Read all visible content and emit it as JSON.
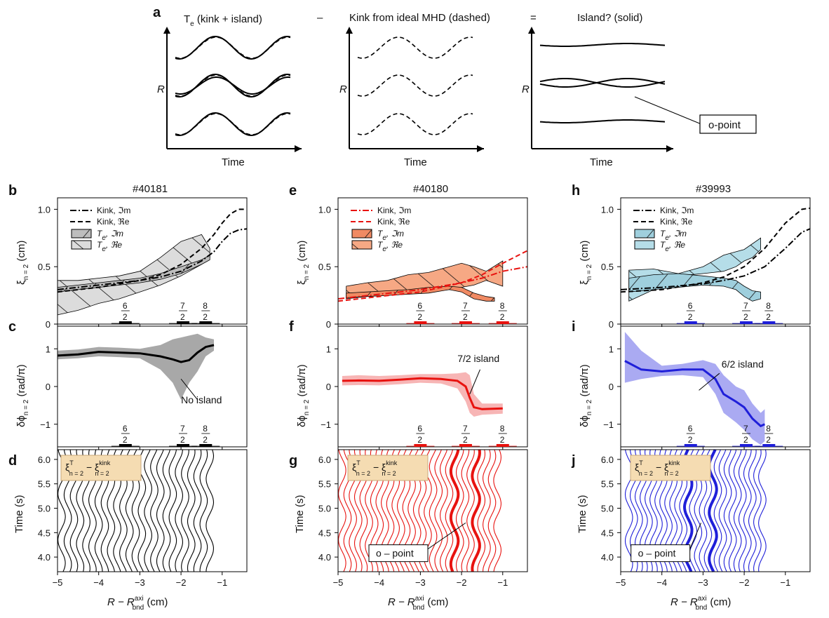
{
  "panel_letters": [
    "a",
    "b",
    "c",
    "d",
    "e",
    "f",
    "g",
    "h",
    "i",
    "j"
  ],
  "top": {
    "header1_main": "T",
    "header1_sub": "e",
    "header1_rest": "(kink + island)",
    "minus": "–",
    "header2": "Kink from ideal MHD (dashed)",
    "equals": "=",
    "header3": "Island? (solid)",
    "ylabel": "R",
    "xlabel": "Time",
    "opoint": "o-point"
  },
  "shots": [
    "#40181",
    "#40180",
    "#39993"
  ],
  "colors": {
    "black": "#000000",
    "red": "#e8120f",
    "blue": "#1f1fd9",
    "fill_black": "#cfcfcf",
    "fill_red": "#f4a07c",
    "fill_blue": "#a9d6e3",
    "band_black": "#a8a8a8",
    "band_red": "#f7b5b5",
    "band_blue": "#aaaaf2",
    "boxfill": "#f5dcb2",
    "boxedge": "#c9a87a"
  },
  "axis": {
    "x_ticks": [
      "−5",
      "−4",
      "−3",
      "−2",
      "−1"
    ],
    "x_label_main": "R − R",
    "x_label_sup": "axi",
    "x_label_sub": "bnd",
    "x_label_unit": " (cm)",
    "xi_ticks": [
      "0",
      "0.5",
      "1.0"
    ],
    "phi_ticks": [
      "1",
      "0",
      "−1"
    ],
    "time_ticks": [
      "6.0",
      "5.5",
      "5.0",
      "4.5",
      "4.0"
    ],
    "xi_label": "ξ",
    "xi_label_sub": "n = 2",
    "xi_label_unit": " (cm)",
    "phi_label": "δϕ",
    "phi_label_sub": "n = 2",
    "phi_label_unit": " (rad/π)",
    "time_label": "Time (s)"
  },
  "legend": {
    "kink_im": "Kink, ℑm",
    "kink_re": "Kink, ℜe",
    "te_im_main": "T",
    "te_im_sub": "e",
    "te_im_rest": ", ℑm",
    "te_re_rest": ", ℜe"
  },
  "resonances": {
    "labels": [
      [
        "6",
        "2"
      ],
      [
        "7",
        "2"
      ],
      [
        "8",
        "2"
      ]
    ]
  },
  "annotations": {
    "no_island": "No island",
    "island_72": "7/2 island",
    "island_62": "6/2 island",
    "opoint": "o – point",
    "box_xi": "ξ",
    "box_sup": "T",
    "box_sup2": "e",
    "box_sub": "n = 2",
    "box_minus": " − ξ",
    "box_kink": "kink"
  },
  "chart_data": [
    {
      "panel": "b",
      "type": "line",
      "title": "#40181",
      "ylabel": "ξ n=2 (cm)",
      "xlim": [
        -5,
        -0.4
      ],
      "ylim": [
        0,
        1.1
      ],
      "series": [
        {
          "name": "Kink, ℑm",
          "style": "dashdot",
          "x": [
            -5,
            -4.5,
            -4,
            -3.5,
            -3,
            -2.5,
            -2,
            -1.5,
            -1.2,
            -1,
            -0.8,
            -0.6,
            -0.4
          ],
          "y": [
            0.3,
            0.32,
            0.34,
            0.36,
            0.38,
            0.41,
            0.46,
            0.55,
            0.63,
            0.72,
            0.79,
            0.82,
            0.83
          ]
        },
        {
          "name": "Kink, ℜe",
          "style": "dashed",
          "x": [
            -5,
            -4.5,
            -4,
            -3.5,
            -3,
            -2.5,
            -2,
            -1.5,
            -1.2,
            -1,
            -0.8,
            -0.6,
            -0.4
          ],
          "y": [
            0.28,
            0.3,
            0.32,
            0.35,
            0.38,
            0.43,
            0.52,
            0.66,
            0.78,
            0.88,
            0.96,
            1.0,
            1.0
          ]
        },
        {
          "name": "Te, ℑm",
          "style": "hatch",
          "x": [
            -5,
            -4.5,
            -4,
            -3.5,
            -3,
            -2.5,
            -2,
            -1.5,
            -1.3
          ],
          "upper": [
            0.32,
            0.34,
            0.36,
            0.38,
            0.4,
            0.44,
            0.5,
            0.56,
            0.6
          ],
          "lower": [
            0.28,
            0.3,
            0.32,
            0.34,
            0.36,
            0.39,
            0.44,
            0.52,
            0.56
          ]
        },
        {
          "name": "Te, ℜe",
          "style": "fill",
          "x": [
            -5,
            -4.5,
            -4,
            -3.5,
            -3,
            -2.5,
            -2,
            -1.5,
            -1.3
          ],
          "upper": [
            0.38,
            0.38,
            0.4,
            0.42,
            0.46,
            0.58,
            0.72,
            0.78,
            0.66
          ],
          "lower": [
            0.08,
            0.12,
            0.18,
            0.22,
            0.28,
            0.34,
            0.42,
            0.52,
            0.58
          ]
        }
      ]
    },
    {
      "panel": "c",
      "type": "line",
      "ylabel": "δϕ n=2 (rad/π)",
      "xlim": [
        -5,
        -0.4
      ],
      "ylim": [
        -1.6,
        1.6
      ],
      "series": [
        {
          "name": "",
          "x": [
            -5,
            -4.5,
            -4,
            -3.5,
            -3,
            -2.5,
            -2.2,
            -2,
            -1.8,
            -1.6,
            -1.4,
            -1.2
          ],
          "y": [
            0.82,
            0.85,
            0.92,
            0.9,
            0.88,
            0.8,
            0.72,
            0.65,
            0.7,
            0.9,
            1.05,
            1.1
          ],
          "upper": [
            0.95,
            0.98,
            1.05,
            1.03,
            1.0,
            1.1,
            1.25,
            1.3,
            1.35,
            1.4,
            1.3,
            1.25
          ],
          "lower": [
            0.72,
            0.75,
            0.8,
            0.78,
            0.75,
            0.45,
            0.1,
            -0.35,
            0.1,
            0.4,
            0.8,
            0.95
          ]
        }
      ]
    },
    {
      "panel": "e",
      "type": "line",
      "title": "#40180",
      "xlim": [
        -5,
        -0.4
      ],
      "ylim": [
        0,
        1.1
      ],
      "series": [
        {
          "name": "Kink, ℑm",
          "style": "dashdot",
          "x": [
            -5,
            -4,
            -3,
            -2,
            -1.5,
            -1,
            -0.4
          ],
          "y": [
            0.22,
            0.26,
            0.3,
            0.36,
            0.4,
            0.46,
            0.5
          ]
        },
        {
          "name": "Kink, ℜe",
          "style": "dashed",
          "x": [
            -5,
            -4,
            -3,
            -2,
            -1.5,
            -1,
            -0.4
          ],
          "y": [
            0.2,
            0.24,
            0.28,
            0.36,
            0.43,
            0.53,
            0.64
          ]
        },
        {
          "name": "Te, ℑm",
          "style": "hatch",
          "x": [
            -4.8,
            -4.3,
            -3.8,
            -3.3,
            -2.8,
            -2.3,
            -2,
            -1.7,
            -1.4,
            -1.2
          ],
          "upper": [
            0.27,
            0.28,
            0.29,
            0.3,
            0.32,
            0.33,
            0.32,
            0.27,
            0.24,
            0.23
          ],
          "lower": [
            0.23,
            0.24,
            0.25,
            0.26,
            0.27,
            0.3,
            0.28,
            0.22,
            0.2,
            0.2
          ]
        },
        {
          "name": "Te, ℜe",
          "style": "fill",
          "x": [
            -4.8,
            -4.3,
            -3.8,
            -3.3,
            -2.8,
            -2.3,
            -2,
            -1.7,
            -1.4,
            -1.0
          ],
          "upper": [
            0.33,
            0.36,
            0.38,
            0.43,
            0.45,
            0.5,
            0.53,
            0.5,
            0.46,
            0.55
          ],
          "lower": [
            0.22,
            0.24,
            0.25,
            0.27,
            0.29,
            0.3,
            0.32,
            0.34,
            0.38,
            0.33
          ]
        }
      ]
    },
    {
      "panel": "f",
      "type": "line",
      "xlim": [
        -5,
        -0.4
      ],
      "ylim": [
        -1.6,
        1.6
      ],
      "series": [
        {
          "name": "",
          "x": [
            -4.9,
            -4.5,
            -4,
            -3.5,
            -3,
            -2.5,
            -2.1,
            -1.9,
            -1.8,
            -1.7,
            -1.5,
            -1.0
          ],
          "y": [
            0.15,
            0.16,
            0.15,
            0.18,
            0.22,
            0.2,
            0.15,
            0.0,
            -0.3,
            -0.55,
            -0.6,
            -0.58
          ],
          "upper": [
            0.28,
            0.3,
            0.28,
            0.3,
            0.33,
            0.33,
            0.35,
            0.38,
            0.3,
            -0.2,
            -0.45,
            -0.45
          ],
          "lower": [
            0.03,
            0.04,
            0.03,
            0.06,
            0.1,
            0.08,
            -0.05,
            -0.4,
            -0.7,
            -0.8,
            -0.75,
            -0.72
          ]
        }
      ]
    },
    {
      "panel": "h",
      "type": "line",
      "title": "#39993",
      "xlim": [
        -5,
        -0.4
      ],
      "ylim": [
        0,
        1.1
      ],
      "series": [
        {
          "name": "Kink, ℑm",
          "style": "dashdot",
          "x": [
            -5,
            -4,
            -3,
            -2.5,
            -2,
            -1.5,
            -1,
            -0.6,
            -0.4
          ],
          "y": [
            0.3,
            0.32,
            0.35,
            0.38,
            0.42,
            0.5,
            0.66,
            0.8,
            0.83
          ]
        },
        {
          "name": "Kink, ℜe",
          "style": "dashed",
          "x": [
            -5,
            -4,
            -3,
            -2.5,
            -2,
            -1.5,
            -1,
            -0.6,
            -0.4
          ],
          "y": [
            0.28,
            0.3,
            0.36,
            0.41,
            0.5,
            0.66,
            0.88,
            1.0,
            1.01
          ]
        },
        {
          "name": "Te, ℑm",
          "style": "hatch",
          "x": [
            -4.8,
            -4.2,
            -3.6,
            -3.0,
            -2.5,
            -2.2,
            -2.0,
            -1.8,
            -1.6
          ],
          "upper": [
            0.4,
            0.43,
            0.44,
            0.42,
            0.4,
            0.38,
            0.33,
            0.29,
            0.28
          ],
          "lower": [
            0.28,
            0.3,
            0.32,
            0.34,
            0.33,
            0.3,
            0.24,
            0.2,
            0.22
          ]
        },
        {
          "name": "Te, ℜe",
          "style": "fill",
          "x": [
            -4.8,
            -4.2,
            -3.6,
            -3.0,
            -2.5,
            -2.2,
            -2.0,
            -1.8,
            -1.6
          ],
          "upper": [
            0.47,
            0.48,
            0.44,
            0.5,
            0.6,
            0.63,
            0.65,
            0.7,
            0.75
          ],
          "lower": [
            0.2,
            0.3,
            0.42,
            0.44,
            0.46,
            0.5,
            0.55,
            0.58,
            0.65
          ]
        }
      ]
    },
    {
      "panel": "i",
      "type": "line",
      "xlim": [
        -5,
        -0.4
      ],
      "ylim": [
        -1.6,
        1.6
      ],
      "series": [
        {
          "name": "",
          "x": [
            -4.9,
            -4.5,
            -4,
            -3.5,
            -3,
            -2.7,
            -2.5,
            -2.2,
            -2,
            -1.8,
            -1.6,
            -1.5
          ],
          "y": [
            0.68,
            0.45,
            0.4,
            0.45,
            0.45,
            0.2,
            -0.2,
            -0.4,
            -0.55,
            -0.85,
            -1.05,
            -1.0
          ],
          "upper": [
            1.45,
            0.95,
            0.55,
            0.6,
            0.7,
            0.6,
            0.3,
            0.0,
            -0.1,
            -0.45,
            -0.7,
            -0.6
          ],
          "lower": [
            0.1,
            0.2,
            0.28,
            0.3,
            0.25,
            -0.2,
            -0.7,
            -0.95,
            -1.15,
            -1.4,
            -1.55,
            -1.45
          ]
        }
      ]
    },
    {
      "panel": "d",
      "type": "line",
      "ylim": [
        3.7,
        6.2
      ],
      "xlim": [
        -5,
        -0.4
      ],
      "contour_x": [
        -4.9,
        -4.75,
        -4.6,
        -4.45,
        -4.3,
        -4.15,
        -4.0,
        -3.85,
        -3.7,
        -3.55,
        -3.4,
        -3.25,
        -3.1,
        -2.95,
        -2.8,
        -2.65,
        -2.5,
        -2.35,
        -2.2,
        -2.05,
        -1.9,
        -1.75,
        -1.6,
        -1.45,
        -1.3
      ],
      "highlighted": []
    },
    {
      "panel": "g",
      "type": "line",
      "ylim": [
        3.7,
        6.2
      ],
      "xlim": [
        -5,
        -0.4
      ],
      "contour_x": [
        -4.9,
        -4.77,
        -4.64,
        -4.51,
        -4.38,
        -4.25,
        -4.12,
        -3.99,
        -3.86,
        -3.73,
        -3.6,
        -3.47,
        -3.34,
        -3.21,
        -3.08,
        -2.95,
        -2.82,
        -2.69,
        -2.56,
        -2.43,
        -2.3,
        -2.17,
        -2.04,
        -1.91,
        -1.78,
        -1.65,
        -1.52,
        -1.39,
        -1.26,
        -1.13
      ],
      "highlighted": [
        -2.17,
        -1.65
      ]
    },
    {
      "panel": "j",
      "type": "line",
      "ylim": [
        3.7,
        6.2
      ],
      "xlim": [
        -5,
        -0.4
      ],
      "contour_x": [
        -4.8,
        -4.68,
        -4.56,
        -4.44,
        -4.32,
        -4.2,
        -4.08,
        -3.96,
        -3.84,
        -3.72,
        -3.6,
        -3.48,
        -3.36,
        -3.24,
        -3.12,
        -3.0,
        -2.88,
        -2.76,
        -2.64,
        -2.52,
        -2.4,
        -2.28,
        -2.16,
        -2.04,
        -1.92,
        -1.8,
        -1.68,
        -1.56
      ],
      "highlighted": [
        -3.36,
        -2.76
      ]
    }
  ]
}
